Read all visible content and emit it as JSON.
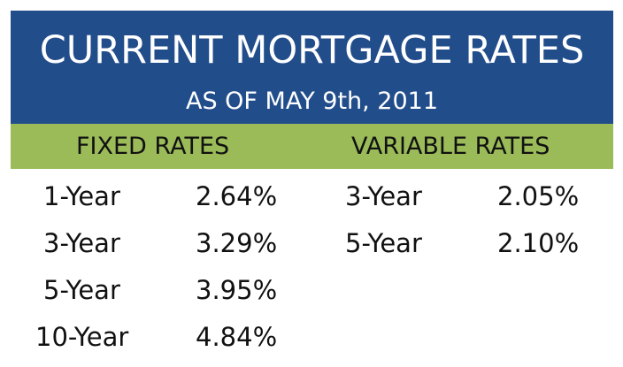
{
  "header": {
    "title": "CURRENT MORTGAGE RATES",
    "subtitle": "AS OF MAY 9th, 2011"
  },
  "sections": {
    "fixed": {
      "label": "FIXED RATES",
      "rows": [
        {
          "term": "1-Year",
          "rate": "2.64%"
        },
        {
          "term": "3-Year",
          "rate": "3.29%"
        },
        {
          "term": "5-Year",
          "rate": "3.95%"
        },
        {
          "term": "10-Year",
          "rate": "4.84%"
        }
      ]
    },
    "variable": {
      "label": "VARIABLE RATES",
      "rows": [
        {
          "term": "3-Year",
          "rate": "2.05%"
        },
        {
          "term": "5-Year",
          "rate": "2.10%"
        }
      ]
    }
  },
  "colors": {
    "header_bg": "#224d8b",
    "band_bg": "#9bbb59",
    "text": "#111111",
    "header_text": "#ffffff"
  }
}
